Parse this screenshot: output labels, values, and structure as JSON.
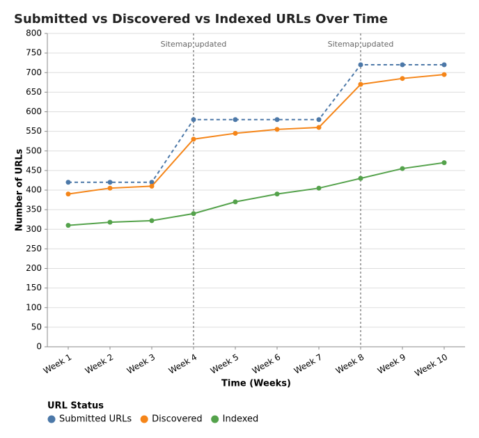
{
  "chart_data": {
    "type": "line",
    "title": "Submitted vs Discovered vs Indexed URLs Over Time",
    "x_label": "Time (Weeks)",
    "y_label": "Number of URLs",
    "categories": [
      "Week 1",
      "Week 2",
      "Week 3",
      "Week 4",
      "Week 5",
      "Week 6",
      "Week 7",
      "Week 8",
      "Week 9",
      "Week 10"
    ],
    "series": [
      {
        "name": "Submitted URLs",
        "color": "#4c78a8",
        "dashed": true,
        "values": [
          420,
          420,
          420,
          580,
          580,
          580,
          580,
          720,
          720,
          720
        ]
      },
      {
        "name": "Discovered",
        "color": "#f58518",
        "dashed": false,
        "values": [
          390,
          405,
          410,
          530,
          545,
          555,
          560,
          670,
          685,
          695
        ]
      },
      {
        "name": "Indexed",
        "color": "#54a24b",
        "dashed": false,
        "values": [
          310,
          318,
          322,
          340,
          370,
          390,
          405,
          430,
          455,
          470
        ]
      }
    ],
    "annotations": [
      {
        "category": "Week 4",
        "label": "Sitemap updated"
      },
      {
        "category": "Week 8",
        "label": "Sitemap updated"
      }
    ],
    "ylim": [
      0,
      800
    ],
    "yticks": [
      0,
      50,
      100,
      150,
      200,
      250,
      300,
      350,
      400,
      450,
      500,
      550,
      600,
      650,
      700,
      750,
      800
    ],
    "grid": true,
    "legend_title": "URL Status",
    "legend_position": "bottom-left"
  }
}
